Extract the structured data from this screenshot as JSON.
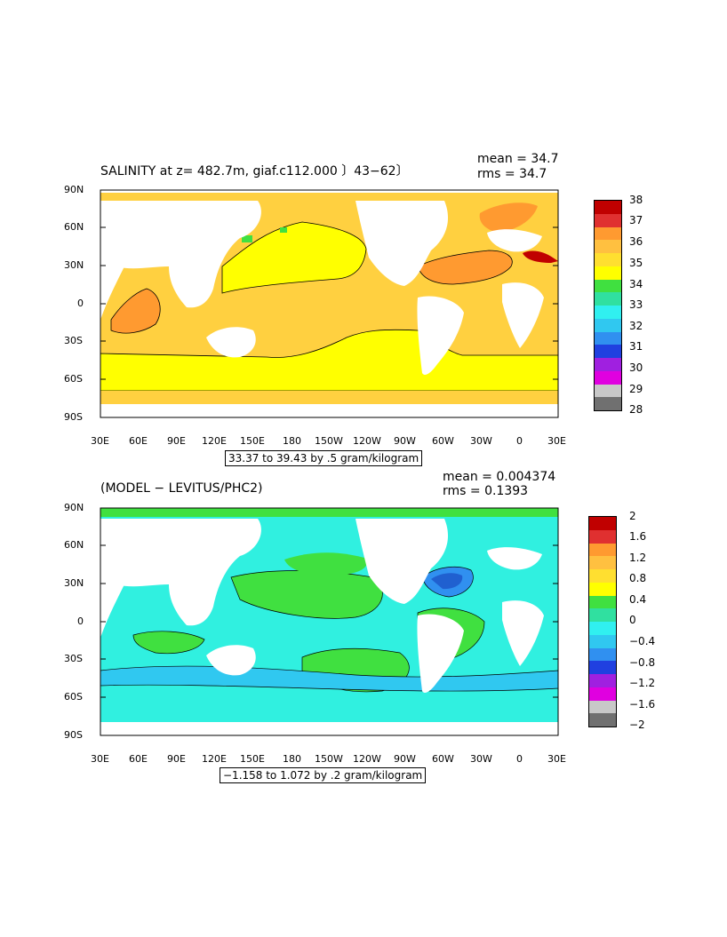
{
  "panel1": {
    "title": "SALINITY at z= 482.7m, giaf.c112.000 〕43−62〕",
    "mean": "mean = 34.7",
    "rms": "rms = 34.7",
    "range_label": "33.37 to 39.43 by .5 gram/kilogram",
    "colorbar_labels": [
      "38",
      "37",
      "36",
      "35",
      "34",
      "33",
      "32",
      "31",
      "30",
      "29",
      "28"
    ],
    "colorbar_colors": [
      "#c00000",
      "#e03030",
      "#ff9a30",
      "#ffc040",
      "#ffdf30",
      "#ffff00",
      "#40e040",
      "#30e0a0",
      "#30f0f0",
      "#30c8f0",
      "#3090f0",
      "#2040e0",
      "#a020e0",
      "#e000e0",
      "#c8c8c8",
      "#707070"
    ]
  },
  "panel2": {
    "title": "(MODEL − LEVITUS/PHC2)",
    "mean": "mean = 0.004374",
    "rms": "rms = 0.1393",
    "range_label": "−1.158 to 1.072 by .2 gram/kilogram",
    "colorbar_labels": [
      "2",
      "1.6",
      "1.2",
      "0.8",
      "0.4",
      "0",
      "−0.4",
      "−0.8",
      "−1.2",
      "−1.6",
      "−2"
    ],
    "colorbar_colors": [
      "#c00000",
      "#e03030",
      "#ff9a30",
      "#ffc040",
      "#ffdf30",
      "#ffff00",
      "#40e040",
      "#30e0a0",
      "#30f0f0",
      "#30c8f0",
      "#3090f0",
      "#2040e0",
      "#a020e0",
      "#e000e0",
      "#c8c8c8",
      "#707070"
    ]
  },
  "axes": {
    "lat_labels": [
      "90N",
      "60N",
      "30N",
      "0",
      "30S",
      "60S",
      "90S"
    ],
    "lon_labels": [
      "30E",
      "60E",
      "90E",
      "120E",
      "150E",
      "180",
      "150W",
      "120W",
      "90W",
      "60W",
      "30W",
      "0",
      "30E"
    ]
  },
  "colors": {
    "land": "#ffffff",
    "panel1_fill_high": "#ffa030",
    "panel1_fill_mid": "#ffd040",
    "panel1_fill_low": "#ffff00",
    "panel1_fill_green": "#40e040",
    "panel1_fill_red": "#c00000",
    "panel2_fill_green": "#40e040",
    "panel2_fill_cyan": "#30f0e0",
    "panel2_fill_blue": "#3090f0"
  }
}
